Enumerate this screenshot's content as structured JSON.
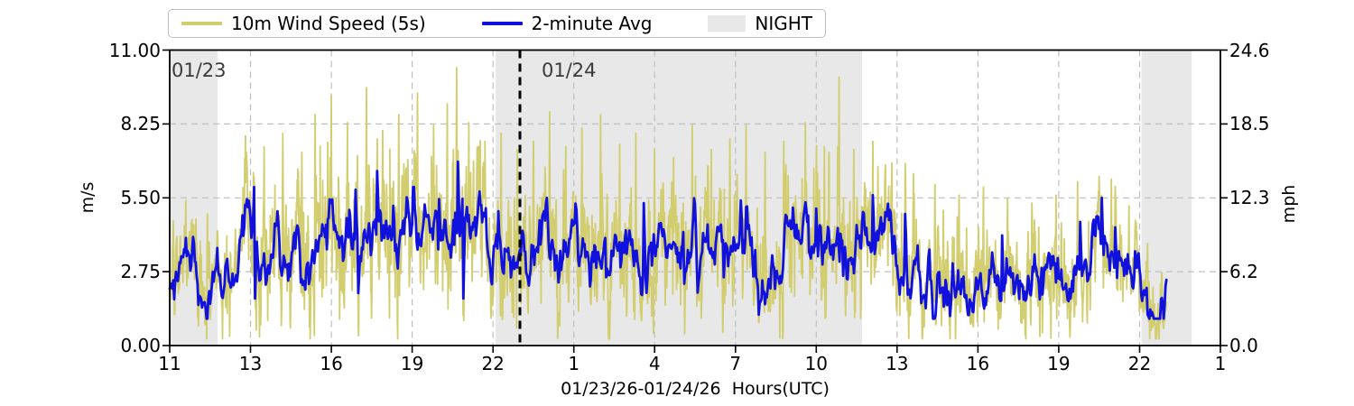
{
  "chart_data": {
    "type": "line",
    "xlabel": "01/23/26-01/24/26  Hours(UTC)",
    "ylabel_left": "m/s",
    "ylabel_right": "mph",
    "ylim_left": [
      0,
      11
    ],
    "ylim_right": [
      0,
      24.6
    ],
    "grid": true,
    "x_axis": {
      "start_hour": 11,
      "end_hour": 50,
      "tick_labels": [
        "11",
        "13",
        "16",
        "19",
        "22",
        "1",
        "4",
        "7",
        "10",
        "13",
        "16",
        "19",
        "22",
        "1"
      ]
    },
    "y_ticks_left": {
      "values": [
        0,
        2.75,
        5.5,
        8.25,
        11
      ],
      "labels": [
        "0.00",
        "2.75",
        "5.50",
        "8.25",
        "11.00"
      ]
    },
    "y_ticks_right": {
      "values": [
        0,
        2.75,
        5.5,
        8.25,
        11
      ],
      "labels": [
        "0.0",
        "6.2",
        "12.3",
        "18.5",
        "24.6"
      ]
    },
    "legend": {
      "position": "top",
      "entries": [
        {
          "label": "10m Wind Speed (5s)",
          "kind": "line",
          "color": "#d2cd6e"
        },
        {
          "label": "2-minute Avg",
          "kind": "line",
          "color": "#1111dd"
        },
        {
          "label": "NIGHT",
          "kind": "patch",
          "color": "#e8e8e8"
        }
      ]
    },
    "annotations": [
      {
        "text": "01/23",
        "hour": 11.15
      },
      {
        "text": "01/24",
        "hour": 24.8
      }
    ],
    "day_boundary_hour": 24,
    "night_regions_hours": [
      [
        11,
        12.78
      ],
      [
        23.1,
        36.7
      ],
      [
        47.07,
        48.93
      ]
    ],
    "data_start_hour": 11,
    "data_end_hour": 48,
    "colors": {
      "night": "#e8e8e8",
      "grid": "#bfbfbf",
      "frame": "#000000",
      "day_boundary": "#000000",
      "annotation": "#3a3a3a"
    },
    "noise_seed": 20260123,
    "series": [
      {
        "name": "10m Wind Speed (5s)",
        "color": "#d2cd6e",
        "line_width": 1.8,
        "sample_step_hours": 0.01333,
        "range_ms": [
          0.25,
          10.4
        ],
        "noise_amplitude_keypoints": [
          [
            11,
            0.75
          ],
          [
            13,
            0.95
          ],
          [
            15,
            1.2
          ],
          [
            18,
            1.3
          ],
          [
            21,
            1.3
          ],
          [
            24,
            1.15
          ],
          [
            30,
            1.1
          ],
          [
            36,
            1.05
          ],
          [
            39,
            0.95
          ],
          [
            43,
            0.8
          ],
          [
            46,
            0.75
          ],
          [
            48,
            0.65
          ]
        ],
        "gust_peaks_ms": [
          [
            11.6,
            5.4
          ],
          [
            12.4,
            4.9
          ],
          [
            13.8,
            6.3
          ],
          [
            14.5,
            7.4
          ],
          [
            15.2,
            7.9
          ],
          [
            15.9,
            7.2
          ],
          [
            16.4,
            8.6
          ],
          [
            17.0,
            9.3
          ],
          [
            17.6,
            8.3
          ],
          [
            18.3,
            9.6
          ],
          [
            18.9,
            8.0
          ],
          [
            19.5,
            8.6
          ],
          [
            20.2,
            9.4
          ],
          [
            20.8,
            8.2
          ],
          [
            21.3,
            9.0
          ],
          [
            21.65,
            10.35
          ],
          [
            22.1,
            8.3
          ],
          [
            22.7,
            7.6
          ],
          [
            23.3,
            7.9
          ],
          [
            23.9,
            7.3
          ],
          [
            24.5,
            7.6
          ],
          [
            25.1,
            8.7
          ],
          [
            25.7,
            7.4
          ],
          [
            26.3,
            8.1
          ],
          [
            27.0,
            8.6
          ],
          [
            27.7,
            7.5
          ],
          [
            28.3,
            7.9
          ],
          [
            29.0,
            7.3
          ],
          [
            29.7,
            7.0
          ],
          [
            30.4,
            8.2
          ],
          [
            31.1,
            7.3
          ],
          [
            31.8,
            7.7
          ],
          [
            32.4,
            8.2
          ],
          [
            33.1,
            7.2
          ],
          [
            33.8,
            7.6
          ],
          [
            34.6,
            8.3
          ],
          [
            35.3,
            7.4
          ],
          [
            35.85,
            10.0
          ],
          [
            36.4,
            7.3
          ],
          [
            37.1,
            7.6
          ],
          [
            37.8,
            6.8
          ],
          [
            38.6,
            6.4
          ],
          [
            39.4,
            6.0
          ],
          [
            40.3,
            5.6
          ],
          [
            41.2,
            5.9
          ],
          [
            42.1,
            5.5
          ],
          [
            43.0,
            5.3
          ],
          [
            43.9,
            5.6
          ],
          [
            44.7,
            6.1
          ],
          [
            45.5,
            6.3
          ],
          [
            45.95,
            6.2
          ],
          [
            46.6,
            5.2
          ],
          [
            47.3,
            3.8
          ]
        ]
      },
      {
        "name": "2-minute Avg",
        "color": "#1111dd",
        "line_width": 2.8,
        "sample_step_hours": 0.03333,
        "range_ms": [
          1.0,
          6.9
        ],
        "trend_keypoints_ms": [
          [
            11,
            2.3
          ],
          [
            11.5,
            2.45
          ],
          [
            12,
            2.3
          ],
          [
            12.5,
            2.1
          ],
          [
            13,
            2.2
          ],
          [
            13.3,
            2.6
          ],
          [
            13.7,
            3.9
          ],
          [
            14.2,
            3.7
          ],
          [
            14.7,
            4.0
          ],
          [
            15.3,
            3.6
          ],
          [
            15.85,
            3.3
          ],
          [
            16.3,
            4.0
          ],
          [
            16.8,
            4.2
          ],
          [
            17.3,
            4.1
          ],
          [
            17.9,
            4.4
          ],
          [
            18.4,
            3.9
          ],
          [
            18.8,
            4.3
          ],
          [
            19.3,
            4.0
          ],
          [
            19.8,
            4.1
          ],
          [
            20.3,
            3.9
          ],
          [
            20.8,
            4.2
          ],
          [
            21.3,
            4.1
          ],
          [
            21.8,
            3.7
          ],
          [
            22.3,
            3.8
          ],
          [
            22.8,
            3.9
          ],
          [
            23.3,
            3.8
          ],
          [
            23.8,
            3.7
          ],
          [
            24.3,
            3.85
          ],
          [
            24.8,
            4.0
          ],
          [
            25.3,
            3.8
          ],
          [
            25.8,
            3.6
          ],
          [
            26.3,
            3.45
          ],
          [
            26.8,
            3.3
          ],
          [
            27.3,
            3.45
          ],
          [
            27.8,
            3.6
          ],
          [
            28.3,
            3.75
          ],
          [
            28.8,
            3.7
          ],
          [
            29.3,
            3.55
          ],
          [
            29.8,
            3.45
          ],
          [
            30.3,
            3.45
          ],
          [
            30.8,
            3.55
          ],
          [
            31.3,
            3.5
          ],
          [
            31.8,
            3.55
          ],
          [
            32.3,
            3.65
          ],
          [
            32.8,
            3.55
          ],
          [
            33.3,
            3.5
          ],
          [
            33.8,
            3.45
          ],
          [
            34.3,
            3.5
          ],
          [
            34.8,
            3.6
          ],
          [
            35.3,
            3.6
          ],
          [
            35.8,
            3.5
          ],
          [
            36.3,
            3.6
          ],
          [
            36.8,
            3.75
          ],
          [
            37.3,
            3.8
          ],
          [
            37.8,
            3.55
          ],
          [
            38.3,
            3.45
          ],
          [
            38.8,
            3.25
          ],
          [
            39.3,
            2.7
          ],
          [
            39.8,
            2.35
          ],
          [
            40.3,
            2.4
          ],
          [
            40.8,
            2.5
          ],
          [
            41.3,
            2.55
          ],
          [
            41.8,
            2.5
          ],
          [
            42.3,
            2.6
          ],
          [
            42.8,
            2.55
          ],
          [
            43.3,
            2.5
          ],
          [
            43.8,
            2.6
          ],
          [
            44.3,
            2.75
          ],
          [
            44.8,
            3.0
          ],
          [
            45.3,
            3.25
          ],
          [
            45.8,
            3.3
          ],
          [
            46.3,
            2.9
          ],
          [
            46.8,
            2.3
          ],
          [
            47.2,
            1.9
          ],
          [
            47.5,
            1.55
          ],
          [
            47.8,
            2.1
          ],
          [
            48,
            2.4
          ]
        ],
        "extremes_ms": [
          [
            13.9,
            5.15
          ],
          [
            14.15,
            1.75
          ],
          [
            15.0,
            5.0
          ],
          [
            15.85,
            2.35
          ],
          [
            17.0,
            5.3
          ],
          [
            17.9,
            5.8
          ],
          [
            18.0,
            1.95
          ],
          [
            18.7,
            6.5
          ],
          [
            19.3,
            5.2
          ],
          [
            20.1,
            5.1
          ],
          [
            21.0,
            5.45
          ],
          [
            21.7,
            6.85
          ],
          [
            21.9,
            1.75
          ],
          [
            23.2,
            5.0
          ],
          [
            25.0,
            5.5
          ],
          [
            26.6,
            2.2
          ],
          [
            28.6,
            5.3
          ],
          [
            30.1,
            2.3
          ],
          [
            32.2,
            5.4
          ],
          [
            33.6,
            2.5
          ],
          [
            35.0,
            5.1
          ],
          [
            36.0,
            2.6
          ],
          [
            37.1,
            5.6
          ],
          [
            38.3,
            4.9
          ],
          [
            39.6,
            1.95
          ],
          [
            41.9,
            4.1
          ],
          [
            43.4,
            1.9
          ],
          [
            44.8,
            4.6
          ],
          [
            45.6,
            5.5
          ],
          [
            46.1,
            4.4
          ],
          [
            47.45,
            1.25
          ],
          [
            48.0,
            2.45
          ]
        ]
      }
    ]
  }
}
